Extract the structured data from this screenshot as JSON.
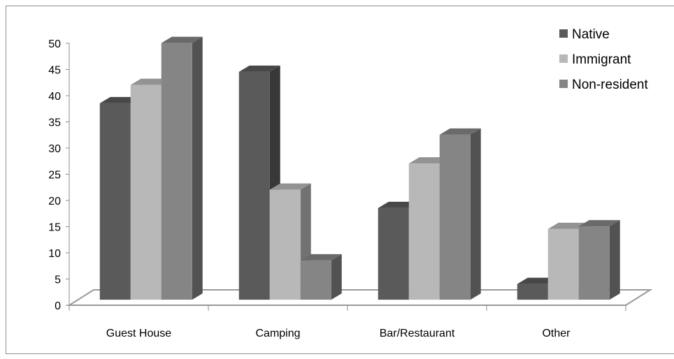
{
  "chart_data": {
    "type": "bar",
    "style": "3d-clustered-column",
    "title": "",
    "xlabel": "",
    "ylabel": "",
    "categories": [
      "Guest House",
      "Camping",
      "Bar/Restaurant",
      "Other"
    ],
    "series": [
      {
        "name": "Native",
        "values": [
          37.5,
          43.5,
          17.5,
          3
        ],
        "color": "#5a5a5a"
      },
      {
        "name": "Immigrant",
        "values": [
          41,
          21,
          26,
          13.5
        ],
        "color": "#b8b8b8"
      },
      {
        "name": "Non-resident",
        "values": [
          49,
          7.5,
          31.5,
          14
        ],
        "color": "#858585"
      }
    ],
    "ylim": [
      0,
      50
    ],
    "yticks": [
      "0",
      "5",
      "10",
      "15",
      "20",
      "25",
      "30",
      "35",
      "40",
      "45",
      "50"
    ],
    "grid": false,
    "legend": "top-right"
  }
}
